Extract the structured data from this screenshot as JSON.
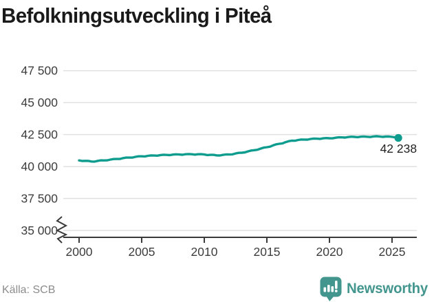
{
  "header": {
    "title": "Befolkningsutveckling i Piteå"
  },
  "footer": {
    "source_label": "Källa: SCB",
    "brand_name": "Newsworthy",
    "brand_icon": "bar-chart-speech-bubble-icon"
  },
  "colors": {
    "accent_line": "#0e9c8f",
    "logo_teal": "#43968e",
    "grid": "#e0e0e0",
    "axis": "#3a3a3a",
    "tick_text": "#3d3d3d",
    "title_text": "#1a1a1a",
    "muted_text": "#8c8c8c",
    "annotation_text": "#222222",
    "background": "#ffffff"
  },
  "chart_data": {
    "type": "line",
    "title": "Befolkningsutveckling i Piteå",
    "xlabel": "",
    "ylabel": "",
    "source": "SCB",
    "grid": "horizontal",
    "legend_position": "none",
    "axis_break": true,
    "ylim": [
      35000,
      47500
    ],
    "xlim": [
      2000,
      2026.9
    ],
    "yticks": [
      35000,
      37500,
      40000,
      42500,
      45000,
      47500
    ],
    "ytick_labels": [
      "35 000",
      "37 500",
      "40 000",
      "42 500",
      "45 000",
      "47 500"
    ],
    "xticks": [
      2000,
      2005,
      2010,
      2015,
      2020,
      2025
    ],
    "xtick_labels": [
      "2000",
      "2005",
      "2010",
      "2015",
      "2020",
      "2025"
    ],
    "x_start": 2000,
    "x_step": 0.25,
    "last_point_label": "42 238",
    "last_point_value": 42238,
    "values": [
      40480,
      40433,
      40445,
      40438,
      40390,
      40388,
      40445,
      40483,
      40480,
      40483,
      40545,
      40588,
      40590,
      40593,
      40655,
      40698,
      40700,
      40700,
      40760,
      40800,
      40800,
      40790,
      40840,
      40870,
      40860,
      40848,
      40895,
      40923,
      40910,
      40893,
      40935,
      40958,
      40940,
      40920,
      40960,
      40980,
      40960,
      40930,
      40960,
      40970,
      40940,
      40898,
      40915,
      40913,
      40870,
      40863,
      40915,
      40948,
      40940,
      40950,
      41020,
      41070,
      41080,
      41105,
      41190,
      41255,
      41280,
      41313,
      41405,
      41478,
      41510,
      41553,
      41655,
      41738,
      41780,
      41815,
      41910,
      41985,
      42020,
      42018,
      42075,
      42113,
      42110,
      42103,
      42155,
      42188,
      42180,
      42163,
      42205,
      42228,
      42210,
      42203,
      42255,
      42288,
      42280,
      42265,
      42310,
      42335,
      42320,
      42298,
      42335,
      42353,
      42330,
      42310,
      42350,
      42370,
      42350,
      42318,
      42345,
      42353,
      42320,
      42280,
      42238
    ]
  }
}
